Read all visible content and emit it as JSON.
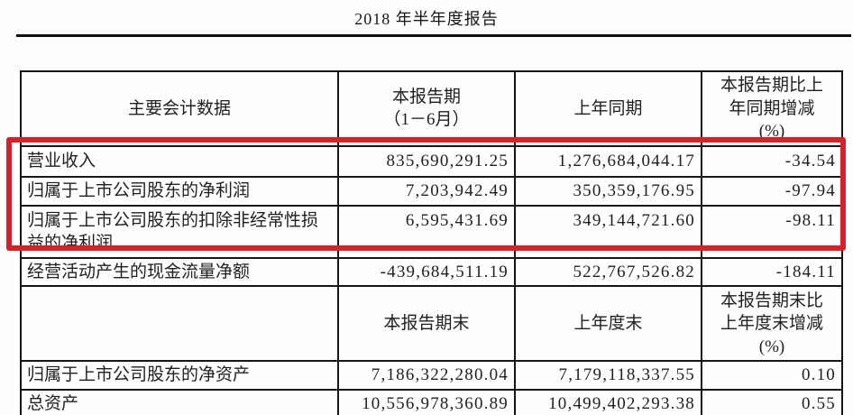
{
  "title": "2018 年半年度报告",
  "highlight_color": "#d2232a",
  "table": {
    "period_header": {
      "metric": "主要会计数据",
      "current": "本报告期\n（1－6月）",
      "prior": "上年同期",
      "change": "本报告期比上\n年同期增减\n(%)"
    },
    "period_rows": [
      {
        "label": "营业收入",
        "current": "835,690,291.25",
        "prior": "1,276,684,044.17",
        "change": "-34.54"
      },
      {
        "label": "归属于上市公司股东的净利润",
        "current": "7,203,942.49",
        "prior": "350,359,176.95",
        "change": "-97.94"
      },
      {
        "label": "归属于上市公司股东的扣除非经常性损益的净利润",
        "current": "6,595,431.69",
        "prior": "349,144,721.60",
        "change": "-98.11"
      },
      {
        "label": "经营活动产生的现金流量净额",
        "current": "-439,684,511.19",
        "prior": "522,767,526.82",
        "change": "-184.11"
      }
    ],
    "eop_header": {
      "metric": "",
      "current": "本报告期末",
      "prior": "上年度末",
      "change": "本报告期末比\n上年度末增减\n(%)"
    },
    "eop_rows": [
      {
        "label": "归属于上市公司股东的净资产",
        "current": "7,186,322,280.04",
        "prior": "7,179,118,337.55",
        "change": "0.10"
      },
      {
        "label": "总资产",
        "current": "10,556,978,360.89",
        "prior": "10,499,402,293.38",
        "change": "0.55"
      }
    ]
  }
}
